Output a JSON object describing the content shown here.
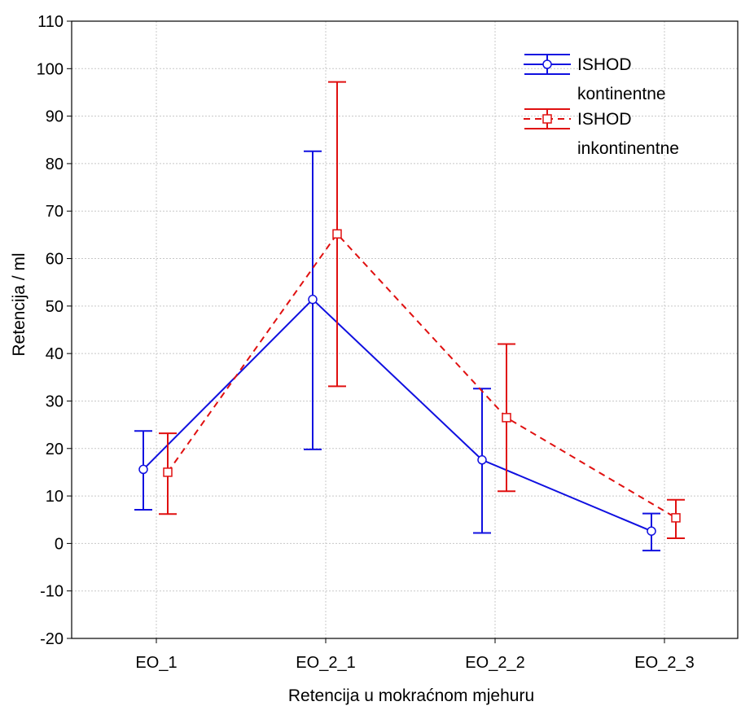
{
  "chart_data": {
    "type": "line",
    "xlabel": "Retencija u mokraćnom mjehuru",
    "ylabel": "Retencija / ml",
    "categories": [
      "EO_1",
      "EO_2_1",
      "EO_2_2",
      "EO_2_3"
    ],
    "ylim": [
      -20,
      110
    ],
    "yticks": [
      -20,
      -10,
      0,
      10,
      20,
      30,
      40,
      50,
      60,
      70,
      80,
      90,
      100,
      110
    ],
    "ytick_labels": [
      "-20",
      "-10",
      "0",
      "10",
      "20",
      "30",
      "40",
      "50",
      "60",
      "70",
      "80",
      "90",
      "100",
      "110"
    ],
    "grid": true,
    "legend_position": "top-right",
    "series": [
      {
        "name": "ISHOD",
        "name_line2": "kontinentne",
        "color": "#1010e0",
        "marker": "circle",
        "line_style": "solid",
        "values": [
          15.6,
          51.4,
          17.6,
          2.6
        ],
        "lower": [
          7.1,
          19.8,
          2.2,
          -1.5
        ],
        "upper": [
          23.7,
          82.6,
          32.6,
          6.3
        ]
      },
      {
        "name": "ISHOD",
        "name_line2": "inkontinentne",
        "color": "#e01010",
        "marker": "square",
        "line_style": "dashed",
        "values": [
          15.0,
          65.2,
          26.5,
          5.4
        ],
        "lower": [
          6.2,
          33.1,
          11.0,
          1.1
        ],
        "upper": [
          23.2,
          97.2,
          42.0,
          9.2
        ]
      }
    ]
  }
}
